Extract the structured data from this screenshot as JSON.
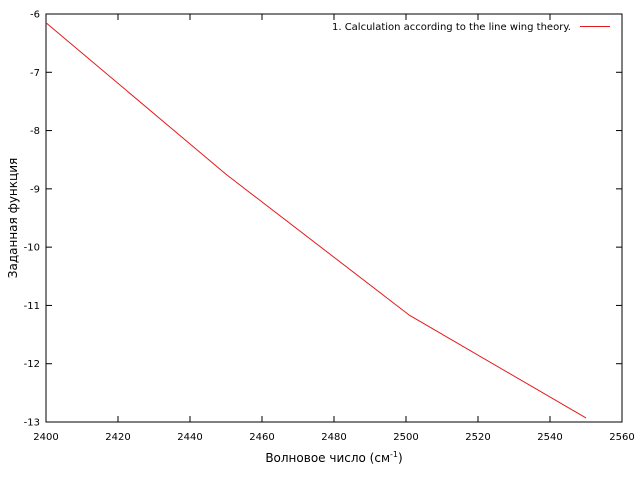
{
  "chart_data": {
    "type": "line",
    "title": "",
    "xlabel": "Волновое число (см",
    "xlabel_sup": "-1",
    "xlabel_suffix": ")",
    "ylabel": "Заданная функция",
    "xlim": [
      2400,
      2560
    ],
    "ylim": [
      -13,
      -6
    ],
    "x_ticks": [
      2400,
      2420,
      2440,
      2460,
      2480,
      2500,
      2520,
      2540,
      2560
    ],
    "y_ticks": [
      -13,
      -12,
      -11,
      -10,
      -9,
      -8,
      -7,
      -6
    ],
    "grid": false,
    "legend_position": "top-right",
    "series": [
      {
        "name": "1. Calculation according to the line wing theory.",
        "color": "#e41a1c",
        "x": [
          2400,
          2450,
          2501,
          2550
        ],
        "y": [
          -6.15,
          -8.75,
          -11.17,
          -12.93
        ]
      }
    ]
  }
}
